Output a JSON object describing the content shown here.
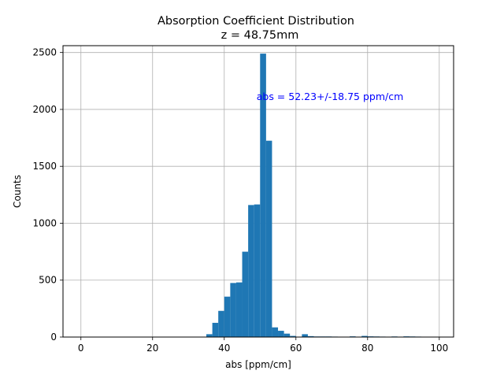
{
  "chart_data": {
    "type": "bar",
    "title": "Absorption Coefficient Distribution",
    "subtitle": "z = 48.75mm",
    "xlabel": "abs [ppm/cm]",
    "ylabel": "Counts",
    "xlim": [
      -5,
      104
    ],
    "ylim": [
      0,
      2560
    ],
    "xticks": [
      0,
      20,
      40,
      60,
      80,
      100
    ],
    "yticks": [
      0,
      500,
      1000,
      1500,
      2000,
      2500
    ],
    "grid": true,
    "bar_color": "#1f77b4",
    "annotation": {
      "text": "abs = 52.23+/-18.75 ppm/cm",
      "color": "#0000ff",
      "x": 49,
      "y": 2110
    },
    "bins": [
      {
        "x0": 35,
        "x1": 36.67,
        "count": 25
      },
      {
        "x0": 36.67,
        "x1": 38.33,
        "count": 125
      },
      {
        "x0": 38.33,
        "x1": 40,
        "count": 230
      },
      {
        "x0": 40,
        "x1": 41.67,
        "count": 355
      },
      {
        "x0": 41.67,
        "x1": 43.33,
        "count": 475
      },
      {
        "x0": 43.33,
        "x1": 45,
        "count": 480
      },
      {
        "x0": 45,
        "x1": 46.67,
        "count": 750
      },
      {
        "x0": 46.67,
        "x1": 48.33,
        "count": 1160
      },
      {
        "x0": 48.33,
        "x1": 50,
        "count": 1165
      },
      {
        "x0": 50,
        "x1": 51.67,
        "count": 2490
      },
      {
        "x0": 51.67,
        "x1": 53.33,
        "count": 1725
      },
      {
        "x0": 53.33,
        "x1": 55,
        "count": 85
      },
      {
        "x0": 55,
        "x1": 56.67,
        "count": 55
      },
      {
        "x0": 56.67,
        "x1": 58.33,
        "count": 30
      },
      {
        "x0": 58.33,
        "x1": 60,
        "count": 10
      },
      {
        "x0": 61.67,
        "x1": 63.33,
        "count": 25
      },
      {
        "x0": 63.33,
        "x1": 65,
        "count": 8
      },
      {
        "x0": 65,
        "x1": 66.67,
        "count": 5
      },
      {
        "x0": 66.67,
        "x1": 68.33,
        "count": 5
      },
      {
        "x0": 68.33,
        "x1": 70,
        "count": 5
      },
      {
        "x0": 70,
        "x1": 71.67,
        "count": 4
      },
      {
        "x0": 75,
        "x1": 76.67,
        "count": 6
      },
      {
        "x0": 78.33,
        "x1": 80,
        "count": 10
      },
      {
        "x0": 80,
        "x1": 81.67,
        "count": 6
      },
      {
        "x0": 81.67,
        "x1": 83.33,
        "count": 5
      },
      {
        "x0": 83.33,
        "x1": 85,
        "count": 4
      },
      {
        "x0": 86.67,
        "x1": 88.33,
        "count": 5
      },
      {
        "x0": 90,
        "x1": 91.67,
        "count": 6
      },
      {
        "x0": 91.67,
        "x1": 93.33,
        "count": 5
      },
      {
        "x0": 93.33,
        "x1": 95,
        "count": 4
      }
    ]
  }
}
